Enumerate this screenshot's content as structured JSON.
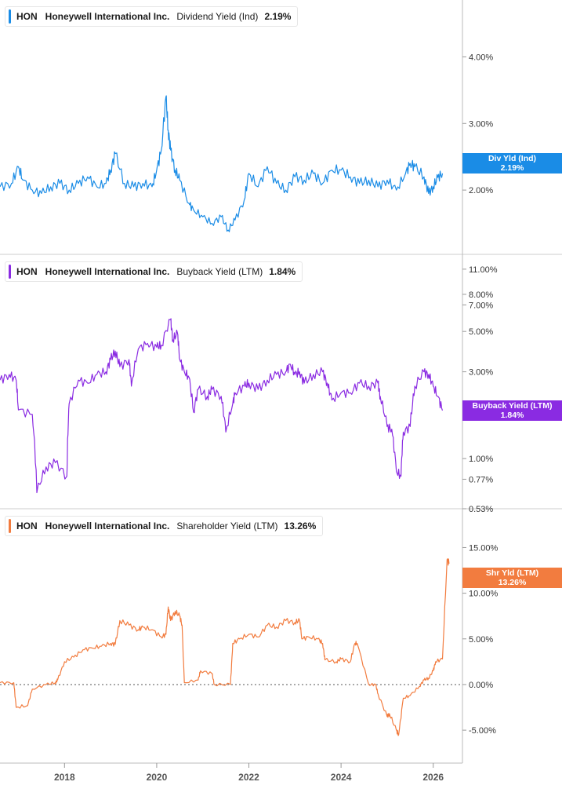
{
  "chart_data": [
    {
      "type": "line",
      "title": "",
      "legend": {
        "ticker": "HON",
        "company": "Honeywell International Inc.",
        "metric": "Dividend Yield (Ind)",
        "value": "2.19%"
      },
      "badge": {
        "label": "Div Yld (Ind)",
        "value": "2.19%"
      },
      "color": "#1a8ce6",
      "y_scale": "linear",
      "ylim": [
        1.2,
        4.5
      ],
      "y_ticks": [
        {
          "v": 4.0,
          "label": "4.00%"
        },
        {
          "v": 3.0,
          "label": "3.00%"
        },
        {
          "v": 2.0,
          "label": "2.00%"
        }
      ],
      "x": [
        2016.6,
        2016.85,
        2017.0,
        2017.1,
        2017.3,
        2017.5,
        2017.7,
        2017.9,
        2018.1,
        2018.3,
        2018.5,
        2018.7,
        2018.9,
        2019.0,
        2019.1,
        2019.3,
        2019.5,
        2019.7,
        2019.9,
        2020.0,
        2020.1,
        2020.2,
        2020.25,
        2020.3,
        2020.4,
        2020.5,
        2020.7,
        2020.8,
        2021.0,
        2021.2,
        2021.4,
        2021.55,
        2021.7,
        2021.9,
        2022.0,
        2022.2,
        2022.4,
        2022.6,
        2022.8,
        2023.0,
        2023.2,
        2023.4,
        2023.6,
        2023.8,
        2024.0,
        2024.2,
        2024.4,
        2024.6,
        2024.8,
        2025.0,
        2025.2,
        2025.4,
        2025.5,
        2025.6,
        2025.8,
        2025.9,
        2026.0,
        2026.1,
        2026.2
      ],
      "series": [
        {
          "values": [
            2.05,
            2.1,
            2.35,
            2.15,
            2.0,
            1.95,
            2.05,
            2.1,
            2.0,
            2.1,
            2.2,
            2.05,
            2.1,
            2.3,
            2.55,
            2.1,
            2.05,
            2.1,
            2.05,
            2.3,
            2.6,
            3.4,
            2.9,
            2.6,
            2.3,
            2.15,
            1.8,
            1.7,
            1.6,
            1.5,
            1.6,
            1.4,
            1.55,
            1.85,
            2.25,
            2.05,
            2.35,
            2.1,
            2.0,
            2.2,
            2.15,
            2.25,
            2.1,
            2.3,
            2.3,
            2.2,
            2.1,
            2.15,
            2.05,
            2.15,
            2.0,
            2.25,
            2.4,
            2.35,
            2.2,
            1.95,
            2.05,
            2.19,
            2.25
          ]
        }
      ]
    },
    {
      "type": "line",
      "title": "",
      "legend": {
        "ticker": "HON",
        "company": "Honeywell International Inc.",
        "metric": "Buyback Yield (LTM)",
        "value": "1.84%"
      },
      "badge": {
        "label": "Buyback Yield (LTM)",
        "value": "1.84%"
      },
      "color": "#8a2be2",
      "y_scale": "log",
      "ylim": [
        0.53,
        12.5
      ],
      "y_ticks": [
        {
          "v": 11.0,
          "label": "11.00%"
        },
        {
          "v": 8.0,
          "label": "8.00%"
        },
        {
          "v": 7.0,
          "label": "7.00%"
        },
        {
          "v": 5.0,
          "label": "5.00%"
        },
        {
          "v": 3.0,
          "label": "3.00%"
        },
        {
          "v": 1.0,
          "label": "1.00%"
        },
        {
          "v": 0.77,
          "label": "0.77%"
        },
        {
          "v": 0.53,
          "label": "0.53%"
        }
      ],
      "x": [
        2016.6,
        2016.8,
        2016.95,
        2017.0,
        2017.3,
        2017.4,
        2017.6,
        2017.8,
        2018.05,
        2018.1,
        2018.3,
        2018.5,
        2018.7,
        2018.9,
        2019.0,
        2019.1,
        2019.2,
        2019.4,
        2019.45,
        2019.6,
        2019.8,
        2020.0,
        2020.1,
        2020.3,
        2020.35,
        2020.45,
        2020.5,
        2020.6,
        2020.7,
        2020.8,
        2020.9,
        2021.1,
        2021.2,
        2021.4,
        2021.5,
        2021.65,
        2021.7,
        2021.9,
        2022.0,
        2022.2,
        2022.4,
        2022.6,
        2022.8,
        2022.9,
        2023.0,
        2023.1,
        2023.2,
        2023.4,
        2023.6,
        2023.7,
        2023.8,
        2024.0,
        2024.2,
        2024.4,
        2024.6,
        2024.8,
        2024.85,
        2025.0,
        2025.1,
        2025.2,
        2025.3,
        2025.35,
        2025.5,
        2025.6,
        2025.8,
        2025.9,
        2026.0,
        2026.1,
        2026.2
      ],
      "series": [
        {
          "values": [
            2.7,
            2.9,
            2.7,
            1.85,
            1.75,
            0.65,
            0.9,
            0.95,
            0.8,
            2.0,
            2.7,
            2.6,
            2.9,
            3.0,
            3.5,
            3.9,
            3.2,
            3.5,
            2.5,
            4.0,
            4.3,
            4.1,
            4.2,
            5.8,
            4.5,
            4.9,
            3.5,
            3.0,
            2.8,
            1.8,
            2.4,
            2.2,
            2.4,
            2.2,
            1.4,
            2.0,
            2.3,
            2.5,
            2.6,
            2.4,
            2.7,
            2.9,
            3.0,
            3.3,
            2.9,
            3.0,
            2.6,
            2.9,
            3.0,
            2.6,
            2.1,
            2.3,
            2.3,
            2.6,
            2.5,
            2.6,
            2.2,
            1.5,
            1.45,
            0.85,
            0.8,
            1.4,
            1.5,
            2.5,
            3.0,
            2.9,
            2.5,
            2.2,
            1.84
          ]
        }
      ]
    },
    {
      "type": "line",
      "title": "",
      "legend": {
        "ticker": "HON",
        "company": "Honeywell International Inc.",
        "metric": "Shareholder Yield (LTM)",
        "value": "13.26%"
      },
      "badge": {
        "label": "Shr Yld (LTM)",
        "value": "13.26%"
      },
      "color": "#f27c3f",
      "y_scale": "linear",
      "ylim": [
        -8.0,
        16.5
      ],
      "zero_line": true,
      "y_ticks": [
        {
          "v": 15.0,
          "label": "15.00%"
        },
        {
          "v": 10.0,
          "label": "10.00%"
        },
        {
          "v": 5.0,
          "label": "5.00%"
        },
        {
          "v": 0.0,
          "label": "0.00%"
        },
        {
          "v": -5.0,
          "label": "-5.00%"
        }
      ],
      "x": [
        2016.6,
        2016.9,
        2016.95,
        2017.2,
        2017.3,
        2017.6,
        2017.8,
        2017.85,
        2018.0,
        2018.2,
        2018.4,
        2018.6,
        2018.8,
        2019.0,
        2019.1,
        2019.2,
        2019.4,
        2019.6,
        2019.7,
        2019.9,
        2020.1,
        2020.2,
        2020.25,
        2020.3,
        2020.4,
        2020.5,
        2020.55,
        2020.6,
        2020.9,
        2020.95,
        2021.2,
        2021.25,
        2021.6,
        2021.65,
        2021.8,
        2022.0,
        2022.2,
        2022.4,
        2022.6,
        2022.8,
        2023.0,
        2023.1,
        2023.15,
        2023.3,
        2023.5,
        2023.6,
        2023.65,
        2023.9,
        2024.0,
        2024.2,
        2024.3,
        2024.35,
        2024.6,
        2024.75,
        2024.8,
        2025.0,
        2025.05,
        2025.2,
        2025.25,
        2025.35,
        2025.5,
        2025.7,
        2025.8,
        2025.9,
        2026.0,
        2026.05,
        2026.2,
        2026.3,
        2026.35
      ],
      "series": [
        {
          "values": [
            0.2,
            0.2,
            -2.5,
            -2.3,
            -0.5,
            0.0,
            0.2,
            0.5,
            2.5,
            3.0,
            3.8,
            4.0,
            4.2,
            4.5,
            4.4,
            7.0,
            6.5,
            6.0,
            6.3,
            6.0,
            5.2,
            5.5,
            8.5,
            7.0,
            8.0,
            7.5,
            6.5,
            0.2,
            0.5,
            1.5,
            1.2,
            0.0,
            0.0,
            4.5,
            5.0,
            5.5,
            5.2,
            6.5,
            6.3,
            7.0,
            6.8,
            7.0,
            5.0,
            5.2,
            5.0,
            4.5,
            2.7,
            2.5,
            2.8,
            2.5,
            4.5,
            4.5,
            0.0,
            0.0,
            -1.0,
            -3.5,
            -3.2,
            -5.0,
            -5.5,
            -1.5,
            -1.2,
            -0.2,
            0.5,
            0.7,
            1.5,
            2.5,
            2.8,
            13.7,
            13.26
          ]
        }
      ]
    }
  ],
  "x_axis": {
    "ticks": [
      {
        "v": 2018,
        "label": "2018"
      },
      {
        "v": 2020,
        "label": "2020"
      },
      {
        "v": 2022,
        "label": "2022"
      },
      {
        "v": 2024,
        "label": "2024"
      },
      {
        "v": 2026,
        "label": "2026"
      }
    ]
  }
}
